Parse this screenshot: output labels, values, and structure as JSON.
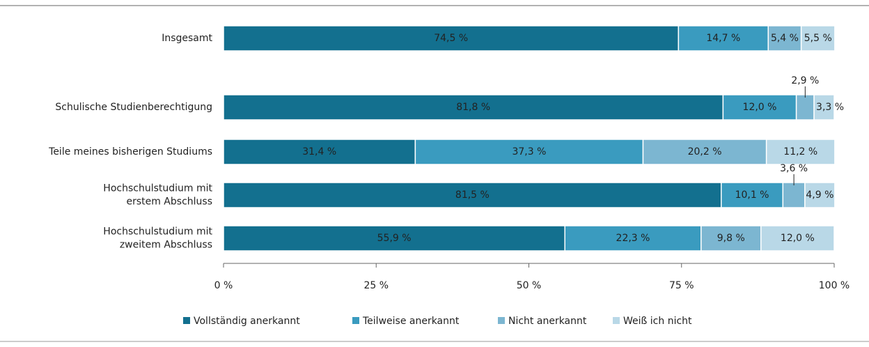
{
  "chart_data": {
    "type": "stacked-bar-horizontal",
    "categories": [
      "Insgesamt",
      "Schulische Studienberechtigung",
      "Teile meines bisherigen Studiums",
      "Hochschulstudium mit\nerstem Abschluss",
      "Hochschulstudium mit\nzweitem Abschluss"
    ],
    "series": [
      {
        "name": "Vollständig anerkannt",
        "color": "#13708f",
        "values": [
          74.5,
          81.8,
          31.4,
          81.5,
          55.9
        ],
        "value_labels": [
          "74,5 %",
          "81,8 %",
          "31,4 %",
          "81,5 %",
          "55,9 %"
        ]
      },
      {
        "name": "Teilweise anerkannt",
        "color": "#3a9bbf",
        "values": [
          14.7,
          12.0,
          37.3,
          10.1,
          22.3
        ],
        "value_labels": [
          "14,7 %",
          "12,0 %",
          "37,3 %",
          "10,1 %",
          "22,3 %"
        ]
      },
      {
        "name": "Nicht anerkannt",
        "color": "#7cb6d1",
        "values": [
          5.4,
          2.9,
          20.2,
          3.6,
          9.8
        ],
        "value_labels": [
          "5,4 %",
          "2,9 %",
          "20,2 %",
          "3,6 %",
          "9,8 %"
        ]
      },
      {
        "name": "Weiß ich nicht",
        "color": "#b9d8e7",
        "values": [
          5.5,
          3.3,
          11.2,
          4.9,
          12.0
        ],
        "value_labels": [
          "5,5 %",
          "3,3 %",
          "11,2 %",
          "4,9 %",
          "12,0 %"
        ]
      }
    ],
    "xlim": [
      0,
      100
    ],
    "xticks": [
      {
        "value": 0,
        "label": "0 %"
      },
      {
        "value": 25,
        "label": "25 %"
      },
      {
        "value": 50,
        "label": "50 %"
      },
      {
        "value": 75,
        "label": "75 %"
      },
      {
        "value": 100,
        "label": "100 %"
      }
    ],
    "legend": "bottom"
  }
}
